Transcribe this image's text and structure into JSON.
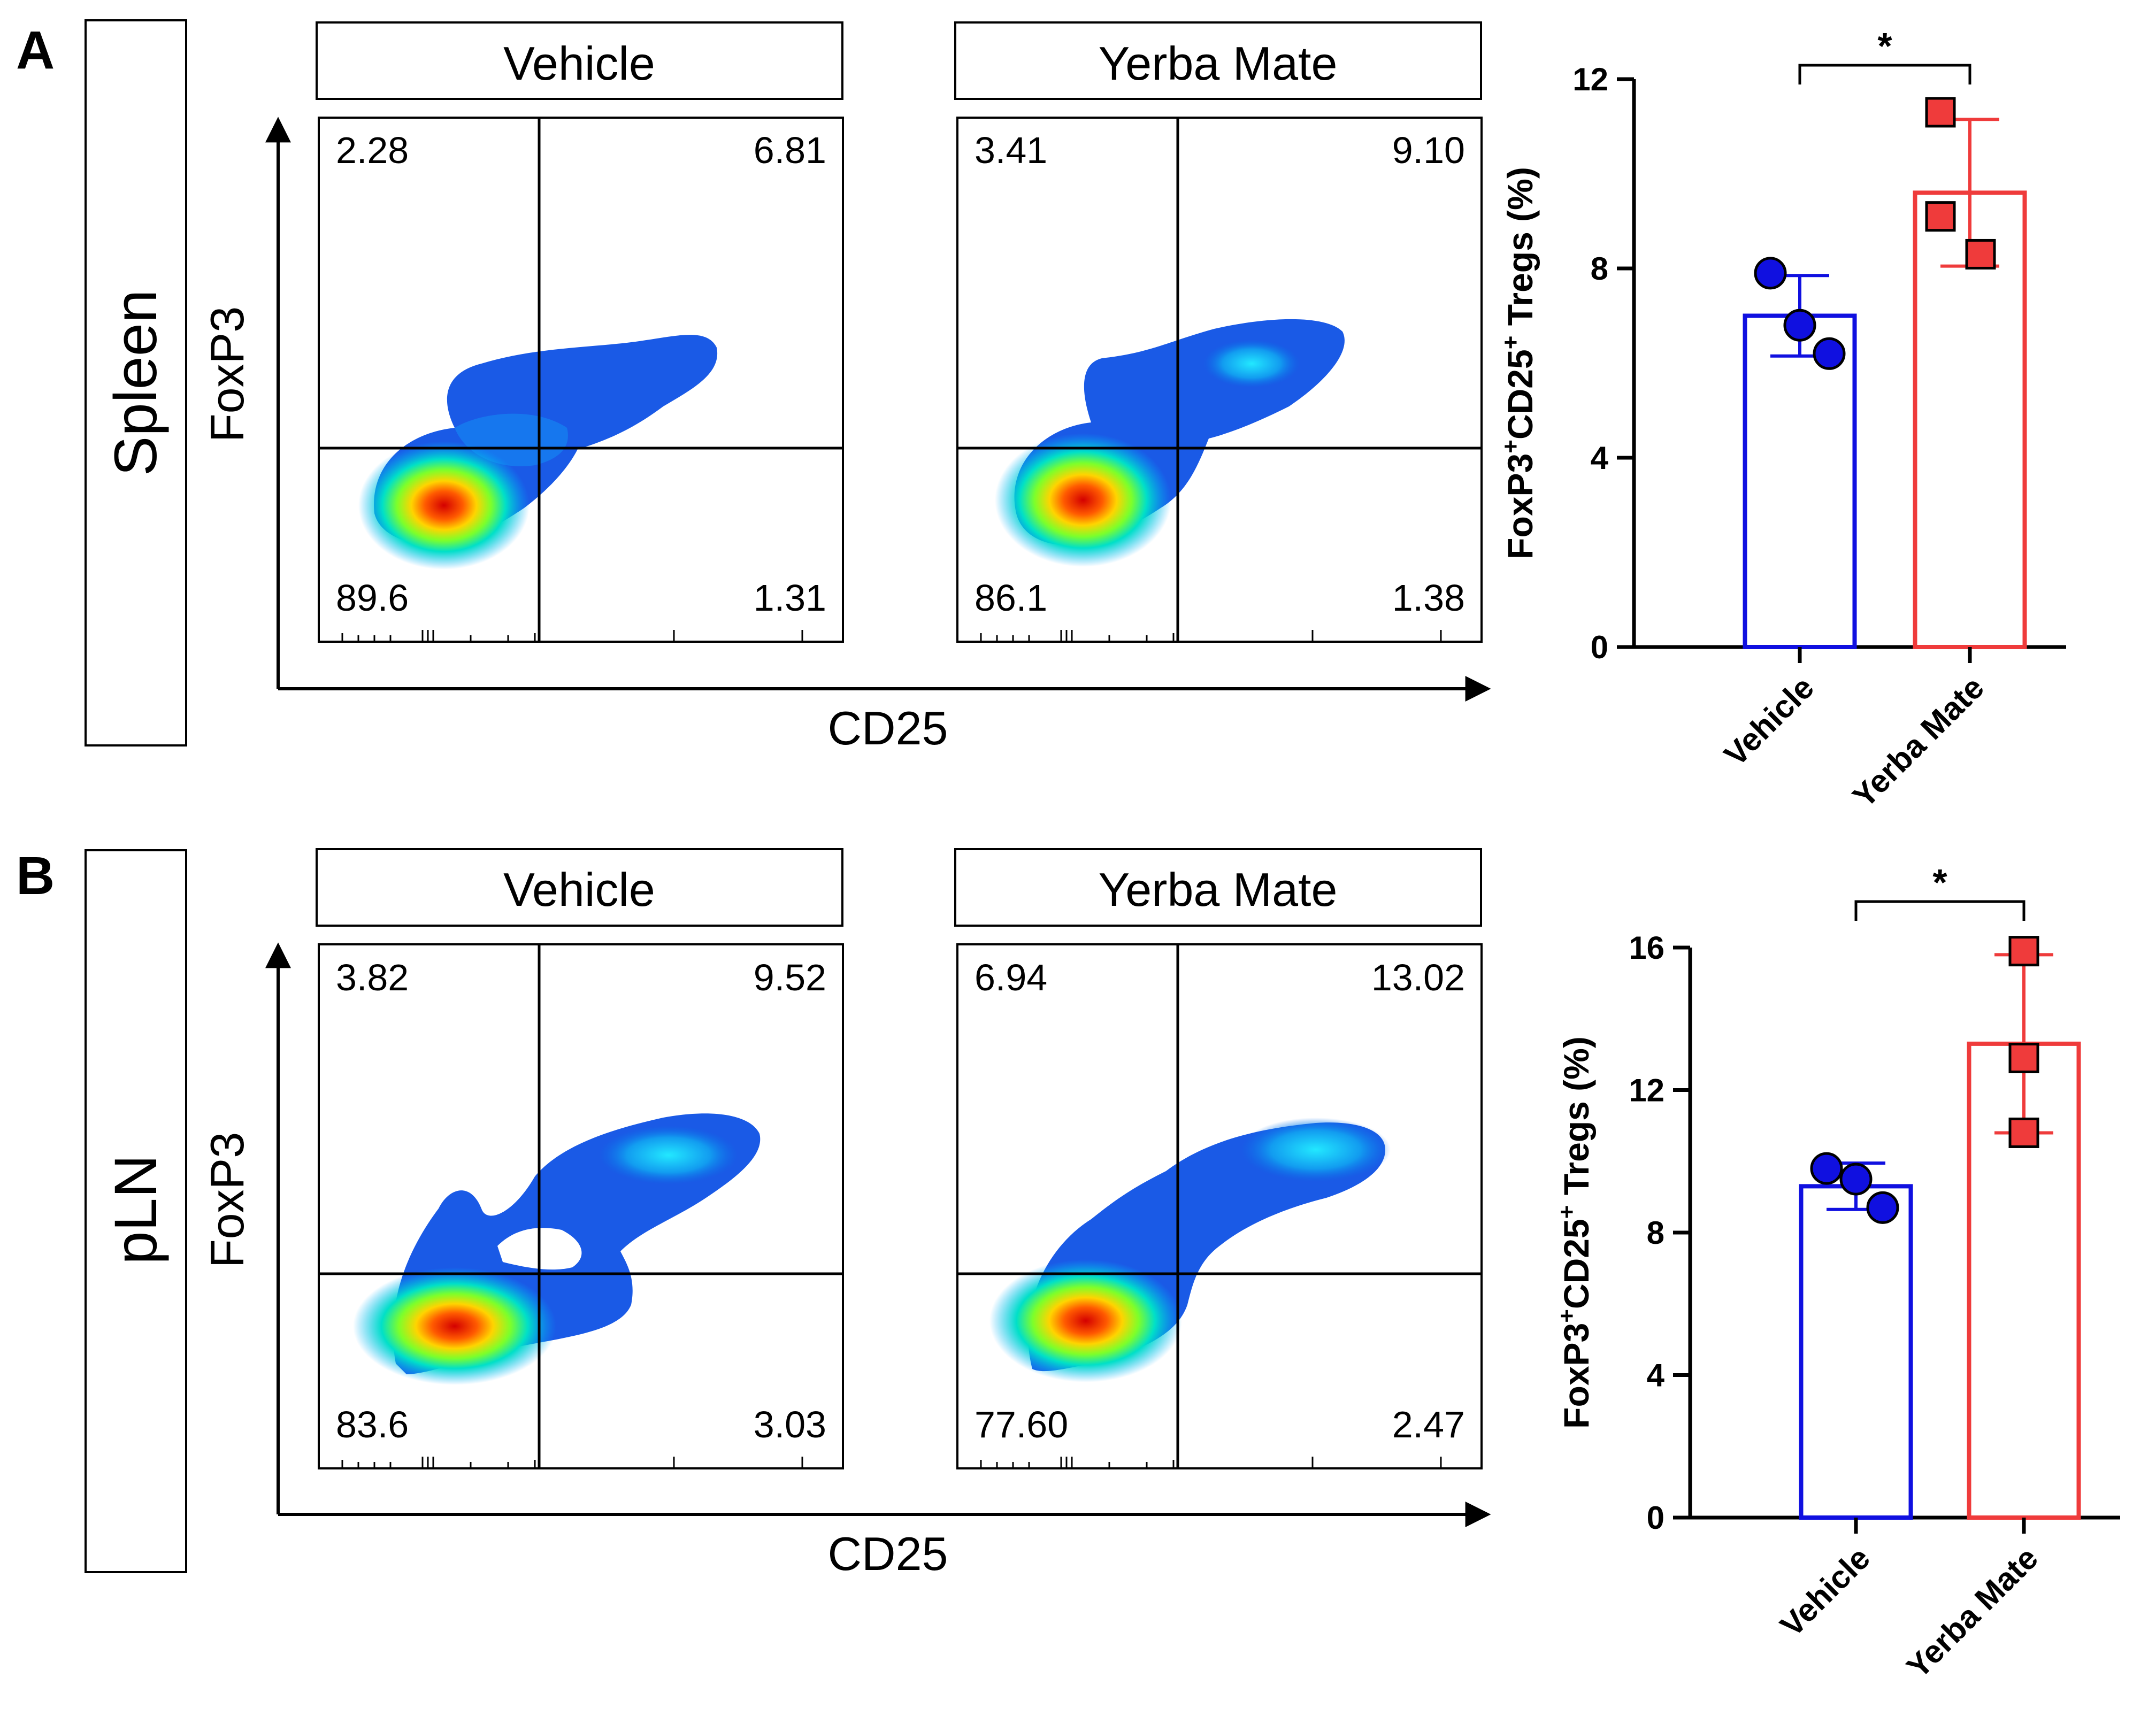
{
  "panels": [
    {
      "letter": "A",
      "tissue": "Spleen",
      "flow": [
        {
          "group": "Vehicle",
          "quadrants": {
            "UL": "2.28",
            "UR": "6.81",
            "LL": "89.6",
            "LR": "1.31"
          }
        },
        {
          "group": "Yerba Mate",
          "quadrants": {
            "UL": "3.41",
            "UR": "9.10",
            "LL": "86.1",
            "LR": "1.38"
          }
        }
      ],
      "x_axis_label": "CD25",
      "y_axis_label": "FoxP3"
    },
    {
      "letter": "B",
      "tissue": "pLN",
      "flow": [
        {
          "group": "Vehicle",
          "quadrants": {
            "UL": "3.82",
            "UR": "9.52",
            "LL": "83.6",
            "LR": "3.03"
          }
        },
        {
          "group": "Yerba Mate",
          "quadrants": {
            "UL": "6.94",
            "UR": "13.02",
            "LL": "77.60",
            "LR": "2.47"
          }
        }
      ],
      "x_axis_label": "CD25",
      "y_axis_label": "FoxP3"
    }
  ],
  "colors": {
    "vehicle": "#1010e0",
    "yerba_mate": "#ef3b3b",
    "axis": "#000000"
  },
  "chart_data": [
    {
      "type": "bar",
      "panel": "A",
      "categories": [
        "Vehicle",
        "Yerba Mate"
      ],
      "means": [
        7.0,
        9.6
      ],
      "sd": [
        0.85,
        1.55
      ],
      "points": [
        [
          7.9,
          6.8,
          6.2
        ],
        [
          11.3,
          9.1,
          8.3
        ]
      ],
      "ylabel_parts": [
        "FoxP3",
        "+",
        "CD25",
        "+",
        " Tregs (%)"
      ],
      "yticks": [
        "0",
        "4",
        "8",
        "12"
      ],
      "ylim": [
        0,
        12
      ],
      "significance": "*"
    },
    {
      "type": "bar",
      "panel": "B",
      "categories": [
        "Vehicle",
        "Yerba Mate"
      ],
      "means": [
        9.3,
        13.3
      ],
      "sd": [
        0.65,
        2.5
      ],
      "points": [
        [
          9.8,
          9.5,
          8.7
        ],
        [
          15.9,
          12.9,
          10.8
        ]
      ],
      "ylabel_parts": [
        "FoxP3",
        "+",
        "CD25",
        "+",
        " Tregs (%)"
      ],
      "yticks": [
        "0",
        "4",
        "8",
        "12",
        "16"
      ],
      "ylim": [
        0,
        16
      ],
      "significance": "*"
    }
  ]
}
